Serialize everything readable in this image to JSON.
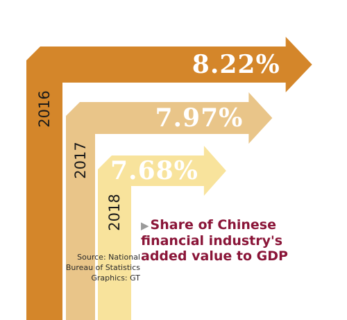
{
  "chart_data": {
    "type": "bar",
    "title": "Share of Chinese financial industry's added value to GDP",
    "categories": [
      "2016",
      "2017",
      "2018"
    ],
    "values": [
      8.22,
      7.97,
      7.68
    ],
    "value_labels": [
      "8.22%",
      "7.97%",
      "7.68%"
    ],
    "colors": [
      "#d4862a",
      "#e9c589",
      "#f8e39c"
    ]
  },
  "title_marker": "▶",
  "source_lines": [
    "Source: National",
    "Bureau of Statistics",
    "Graphics: GT"
  ]
}
